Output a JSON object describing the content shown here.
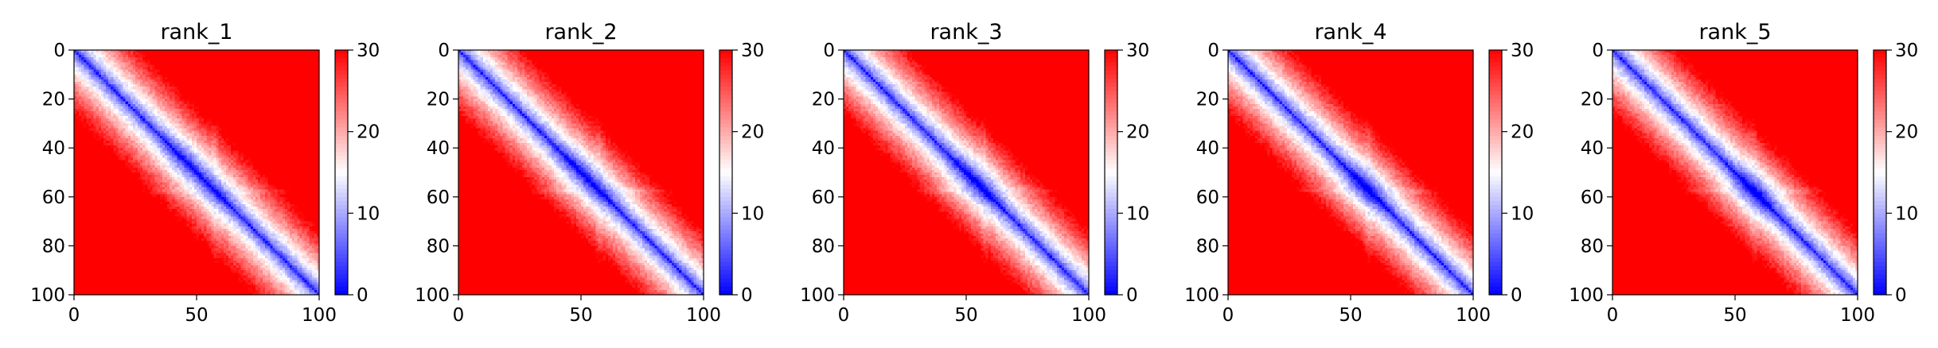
{
  "chart_data": [
    {
      "type": "heatmap",
      "title": "rank_1",
      "x_ticks": [
        "0",
        "50",
        "100"
      ],
      "y_ticks": [
        "0",
        "20",
        "40",
        "60",
        "80",
        "100"
      ],
      "xlim": [
        0,
        100
      ],
      "ylim": [
        100,
        0
      ],
      "colorbar": {
        "ticks": [
          "0",
          "10",
          "20",
          "30"
        ],
        "min": 0,
        "max": 30,
        "colormap": "bwr"
      },
      "matrix_size": 100
    },
    {
      "type": "heatmap",
      "title": "rank_2",
      "x_ticks": [
        "0",
        "50",
        "100"
      ],
      "y_ticks": [
        "0",
        "20",
        "40",
        "60",
        "80",
        "100"
      ],
      "xlim": [
        0,
        100
      ],
      "ylim": [
        100,
        0
      ],
      "colorbar": {
        "ticks": [
          "0",
          "10",
          "20",
          "30"
        ],
        "min": 0,
        "max": 30,
        "colormap": "bwr"
      },
      "matrix_size": 100
    },
    {
      "type": "heatmap",
      "title": "rank_3",
      "x_ticks": [
        "0",
        "50",
        "100"
      ],
      "y_ticks": [
        "0",
        "20",
        "40",
        "60",
        "80",
        "100"
      ],
      "xlim": [
        0,
        100
      ],
      "ylim": [
        100,
        0
      ],
      "colorbar": {
        "ticks": [
          "0",
          "10",
          "20",
          "30"
        ],
        "min": 0,
        "max": 30,
        "colormap": "bwr"
      },
      "matrix_size": 100
    },
    {
      "type": "heatmap",
      "title": "rank_4",
      "x_ticks": [
        "0",
        "50",
        "100"
      ],
      "y_ticks": [
        "0",
        "20",
        "40",
        "60",
        "80",
        "100"
      ],
      "xlim": [
        0,
        100
      ],
      "ylim": [
        100,
        0
      ],
      "colorbar": {
        "ticks": [
          "0",
          "10",
          "20",
          "30"
        ],
        "min": 0,
        "max": 30,
        "colormap": "bwr"
      },
      "matrix_size": 100
    },
    {
      "type": "heatmap",
      "title": "rank_5",
      "x_ticks": [
        "0",
        "50",
        "100"
      ],
      "y_ticks": [
        "0",
        "20",
        "40",
        "60",
        "80",
        "100"
      ],
      "xlim": [
        0,
        100
      ],
      "ylim": [
        100,
        0
      ],
      "colorbar": {
        "ticks": [
          "0",
          "10",
          "20",
          "30"
        ],
        "min": 0,
        "max": 30,
        "colormap": "bwr"
      },
      "matrix_size": 100
    }
  ],
  "colors": {
    "low": "#0000ff",
    "mid": "#ffffff",
    "high": "#ff0000",
    "axis": "#000000"
  }
}
